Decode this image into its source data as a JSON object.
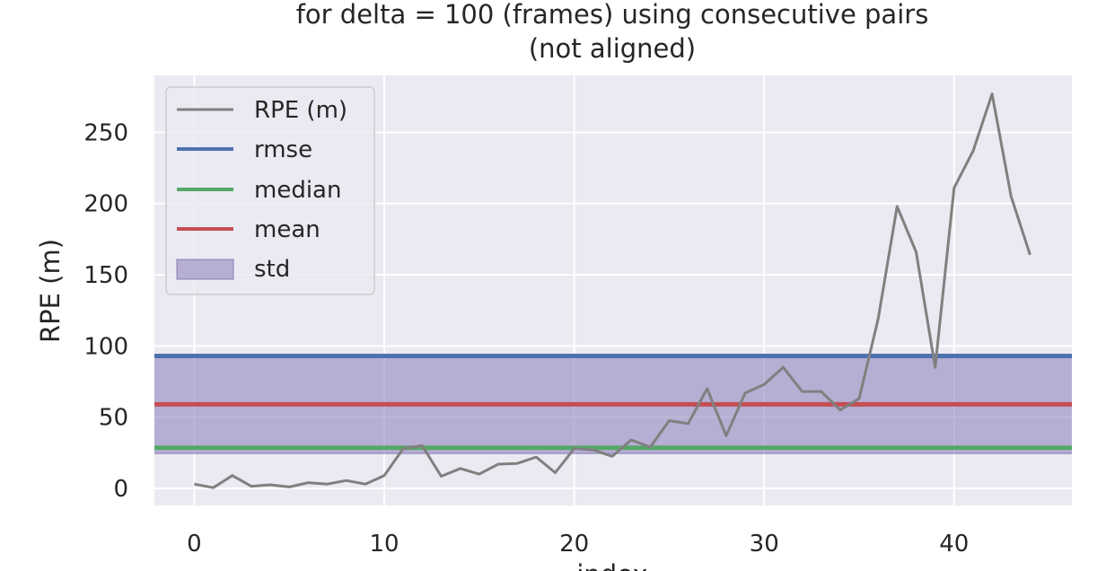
{
  "chart_data": {
    "type": "line",
    "title_lines": [
      "for delta = 100 (frames) using consecutive pairs",
      "(not aligned)"
    ],
    "xlabel": "index",
    "ylabel": "RPE (m)",
    "xlim": [
      -2.1,
      46.2
    ],
    "ylim": [
      -12,
      290
    ],
    "x_ticks": [
      0,
      10,
      20,
      30,
      40
    ],
    "y_ticks": [
      0,
      50,
      100,
      150,
      200,
      250
    ],
    "grid": true,
    "legend_position": "top-left",
    "series": [
      {
        "name": "RPE (m)",
        "color": "#808080",
        "x": [
          0,
          1,
          2,
          3,
          4,
          5,
          6,
          7,
          8,
          9,
          10,
          11,
          12,
          13,
          14,
          15,
          16,
          17,
          18,
          19,
          20,
          21,
          22,
          23,
          24,
          25,
          26,
          27,
          28,
          29,
          30,
          31,
          32,
          33,
          34,
          35,
          36,
          37,
          38,
          39,
          40,
          41,
          42,
          43,
          44
        ],
        "values": [
          3,
          0.5,
          9,
          1.5,
          2.5,
          1,
          4,
          3,
          5.5,
          3,
          9,
          28,
          30,
          8.5,
          14,
          10,
          17,
          17.5,
          22,
          11,
          28,
          27,
          22.5,
          34,
          29,
          47.5,
          45.5,
          70,
          37,
          67,
          73,
          85,
          68,
          68,
          55,
          63,
          119,
          198,
          166,
          85,
          211,
          237,
          277,
          205,
          164
        ]
      }
    ],
    "statistics": {
      "rmse": {
        "name": "rmse",
        "value": 93,
        "color": "#4c72b0"
      },
      "median": {
        "name": "median",
        "value": 28.5,
        "color": "#55a868"
      },
      "mean": {
        "name": "mean",
        "value": 59,
        "color": "#c44e52"
      },
      "std": {
        "name": "std",
        "range": [
          24.5,
          94
        ],
        "color": "#8172b3"
      }
    },
    "legend": [
      "RPE (m)",
      "rmse",
      "median",
      "mean",
      "std"
    ]
  }
}
